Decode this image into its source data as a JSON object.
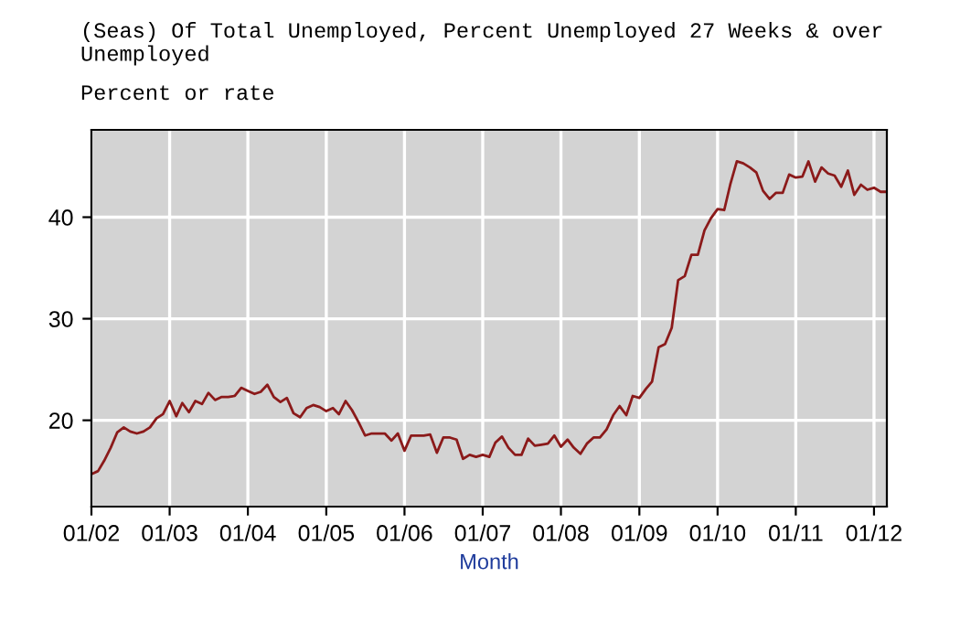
{
  "chart_data": {
    "type": "line",
    "title": "(Seas) Of Total Unemployed, Percent Unemployed 27 Weeks & over Unemployed",
    "subtitle": "Percent or rate",
    "xlabel": "Month",
    "x": [
      "2002-01",
      "2002-02",
      "2002-03",
      "2002-04",
      "2002-05",
      "2002-06",
      "2002-07",
      "2002-08",
      "2002-09",
      "2002-10",
      "2002-11",
      "2002-12",
      "2003-01",
      "2003-02",
      "2003-03",
      "2003-04",
      "2003-05",
      "2003-06",
      "2003-07",
      "2003-08",
      "2003-09",
      "2003-10",
      "2003-11",
      "2003-12",
      "2004-01",
      "2004-02",
      "2004-03",
      "2004-04",
      "2004-05",
      "2004-06",
      "2004-07",
      "2004-08",
      "2004-09",
      "2004-10",
      "2004-11",
      "2004-12",
      "2005-01",
      "2005-02",
      "2005-03",
      "2005-04",
      "2005-05",
      "2005-06",
      "2005-07",
      "2005-08",
      "2005-09",
      "2005-10",
      "2005-11",
      "2005-12",
      "2006-01",
      "2006-02",
      "2006-03",
      "2006-04",
      "2006-05",
      "2006-06",
      "2006-07",
      "2006-08",
      "2006-09",
      "2006-10",
      "2006-11",
      "2006-12",
      "2007-01",
      "2007-02",
      "2007-03",
      "2007-04",
      "2007-05",
      "2007-06",
      "2007-07",
      "2007-08",
      "2007-09",
      "2007-10",
      "2007-11",
      "2007-12",
      "2008-01",
      "2008-02",
      "2008-03",
      "2008-04",
      "2008-05",
      "2008-06",
      "2008-07",
      "2008-08",
      "2008-09",
      "2008-10",
      "2008-11",
      "2008-12",
      "2009-01",
      "2009-02",
      "2009-03",
      "2009-04",
      "2009-05",
      "2009-06",
      "2009-07",
      "2009-08",
      "2009-09",
      "2009-10",
      "2009-11",
      "2009-12",
      "2010-01",
      "2010-02",
      "2010-03",
      "2010-04",
      "2010-05",
      "2010-06",
      "2010-07",
      "2010-08",
      "2010-09",
      "2010-10",
      "2010-11",
      "2010-12",
      "2011-01",
      "2011-02",
      "2011-03",
      "2011-04",
      "2011-05",
      "2011-06",
      "2011-07",
      "2011-08",
      "2011-09",
      "2011-10",
      "2011-11",
      "2011-12",
      "2012-01",
      "2012-02",
      "2012-03"
    ],
    "series": [
      {
        "color": "#8b1a1a",
        "values": [
          14.7,
          15.0,
          16.0,
          17.3,
          18.8,
          19.3,
          18.9,
          18.7,
          18.9,
          19.3,
          20.2,
          20.6,
          21.9,
          20.4,
          21.7,
          20.8,
          21.9,
          21.6,
          22.7,
          22.0,
          22.3,
          22.3,
          22.4,
          23.2,
          22.9,
          22.6,
          22.8,
          23.5,
          22.3,
          21.8,
          22.2,
          20.7,
          20.3,
          21.2,
          21.5,
          21.3,
          20.9,
          21.2,
          20.6,
          21.9,
          21.0,
          19.8,
          18.5,
          18.7,
          18.7,
          18.7,
          18.0,
          18.7,
          17.0,
          18.5,
          18.5,
          18.5,
          18.6,
          16.8,
          18.3,
          18.3,
          18.1,
          16.2,
          16.6,
          16.4,
          16.6,
          16.4,
          17.8,
          18.4,
          17.3,
          16.6,
          16.6,
          18.2,
          17.5,
          17.6,
          17.7,
          18.5,
          17.4,
          18.1,
          17.3,
          16.7,
          17.7,
          18.3,
          18.3,
          19.1,
          20.5,
          21.4,
          20.5,
          22.4,
          22.2,
          23.1,
          23.8,
          27.2,
          27.5,
          29.1,
          33.8,
          34.2,
          36.3,
          36.3,
          38.7,
          39.9,
          40.8,
          40.7,
          43.2,
          45.5,
          45.3,
          44.9,
          44.4,
          42.6,
          41.8,
          42.4,
          42.4,
          44.2,
          43.9,
          44.0,
          45.5,
          43.5,
          44.9,
          44.3,
          44.1,
          43.0,
          44.6,
          42.2,
          43.2,
          42.7,
          42.9,
          42.5,
          42.5
        ]
      }
    ],
    "xlim": [
      "2002-01",
      "2012-03"
    ],
    "xticks": [
      {
        "value": "2002-01",
        "label": "01/02"
      },
      {
        "value": "2003-01",
        "label": "01/03"
      },
      {
        "value": "2004-01",
        "label": "01/04"
      },
      {
        "value": "2005-01",
        "label": "01/05"
      },
      {
        "value": "2006-01",
        "label": "01/06"
      },
      {
        "value": "2007-01",
        "label": "01/07"
      },
      {
        "value": "2008-01",
        "label": "01/08"
      },
      {
        "value": "2009-01",
        "label": "01/09"
      },
      {
        "value": "2010-01",
        "label": "01/10"
      },
      {
        "value": "2011-01",
        "label": "01/11"
      },
      {
        "value": "2012-01",
        "label": "01/12"
      }
    ],
    "ylim": [
      11.5,
      48.6
    ],
    "yticks": [
      20,
      30,
      40
    ],
    "grid": true,
    "legend": false,
    "marker": "none",
    "line_style": "solid"
  }
}
